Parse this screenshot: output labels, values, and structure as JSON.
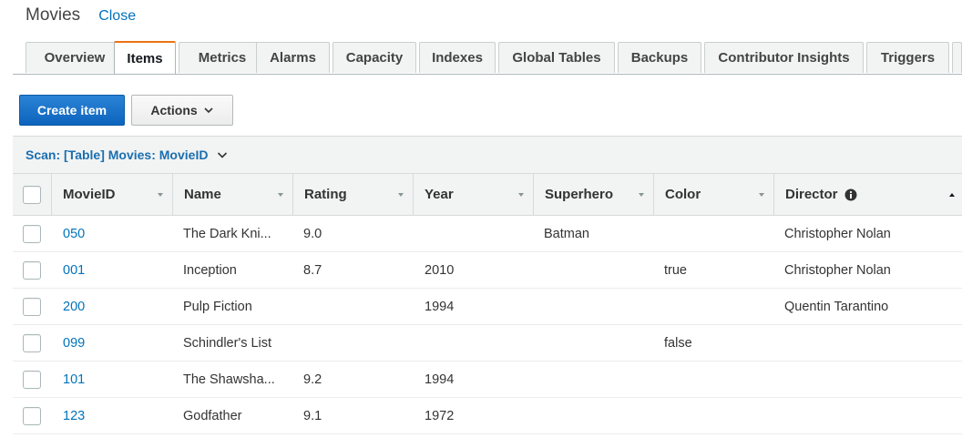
{
  "header": {
    "title": "Movies",
    "close_label": "Close"
  },
  "tabs": [
    {
      "label": "Overview"
    },
    {
      "label": "Items"
    },
    {
      "label": "Metrics"
    },
    {
      "label": "Alarms"
    },
    {
      "label": "Capacity"
    },
    {
      "label": "Indexes"
    },
    {
      "label": "Global Tables"
    },
    {
      "label": "Backups"
    },
    {
      "label": "Contributor Insights"
    },
    {
      "label": "Triggers"
    }
  ],
  "active_tab": "Items",
  "toolbar": {
    "create_label": "Create item",
    "actions_label": "Actions"
  },
  "scan": {
    "label": "Scan: [Table] Movies: MovieID"
  },
  "table": {
    "columns": [
      {
        "label": "MovieID"
      },
      {
        "label": "Name"
      },
      {
        "label": "Rating"
      },
      {
        "label": "Year"
      },
      {
        "label": "Superhero"
      },
      {
        "label": "Color"
      },
      {
        "label": "Director"
      }
    ],
    "rows": [
      {
        "movieid": "050",
        "name": "The Dark Kni...",
        "rating": "9.0",
        "year": "",
        "superhero": "Batman",
        "color": "",
        "director": "Christopher Nolan"
      },
      {
        "movieid": "001",
        "name": "Inception",
        "rating": "8.7",
        "year": "2010",
        "superhero": "",
        "color": "true",
        "director": "Christopher Nolan"
      },
      {
        "movieid": "200",
        "name": "Pulp Fiction",
        "rating": "",
        "year": "1994",
        "superhero": "",
        "color": "",
        "director": "Quentin Tarantino"
      },
      {
        "movieid": "099",
        "name": "Schindler's List",
        "rating": "",
        "year": "",
        "superhero": "",
        "color": "false",
        "director": ""
      },
      {
        "movieid": "101",
        "name": "The Shawsha...",
        "rating": "9.2",
        "year": "1994",
        "superhero": "",
        "color": "",
        "director": ""
      },
      {
        "movieid": "123",
        "name": "Godfather",
        "rating": "9.1",
        "year": "1972",
        "superhero": "",
        "color": "",
        "director": ""
      }
    ]
  },
  "colors": {
    "link": "#0073bb",
    "primary": "#0f6cc9",
    "active_tab_accent": "#ec7211"
  }
}
